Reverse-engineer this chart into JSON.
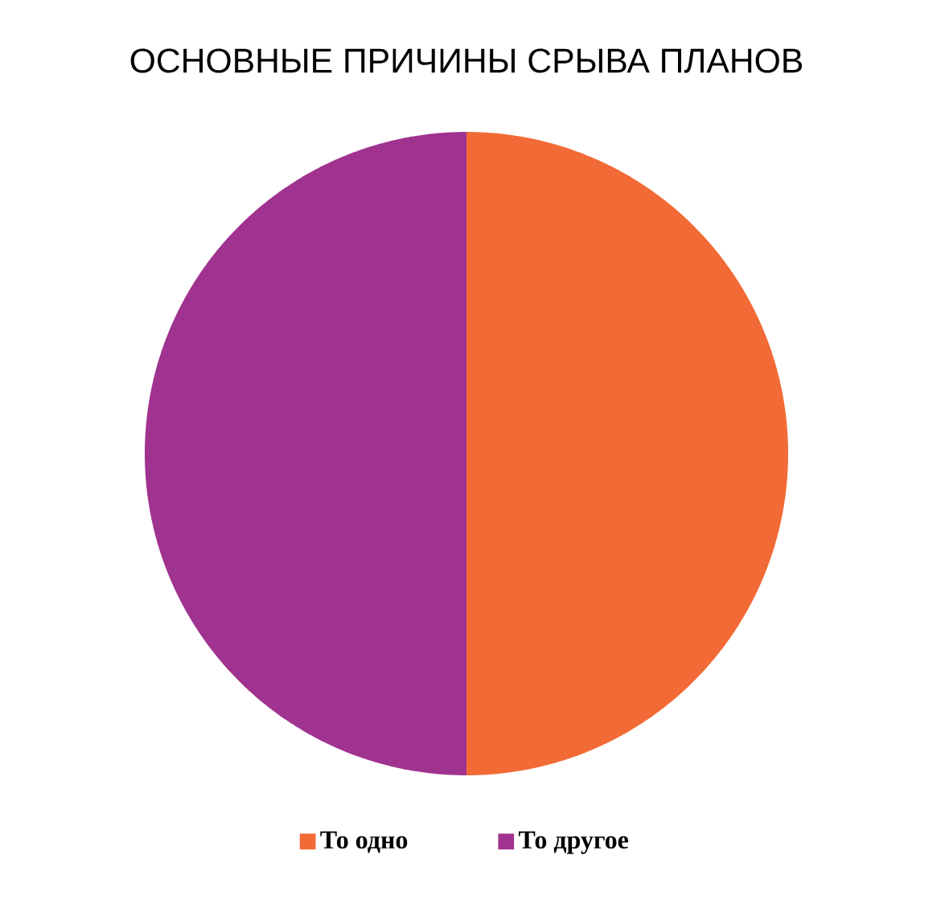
{
  "chart_data": {
    "type": "pie",
    "title": "ОСНОВНЫЕ ПРИЧИНЫ СРЫВА ПЛАНОВ",
    "categories": [
      "То одно",
      "То другое"
    ],
    "values": [
      50,
      50
    ],
    "colors": [
      "#f26a35",
      "#a0338f"
    ],
    "legend": "bottom"
  }
}
